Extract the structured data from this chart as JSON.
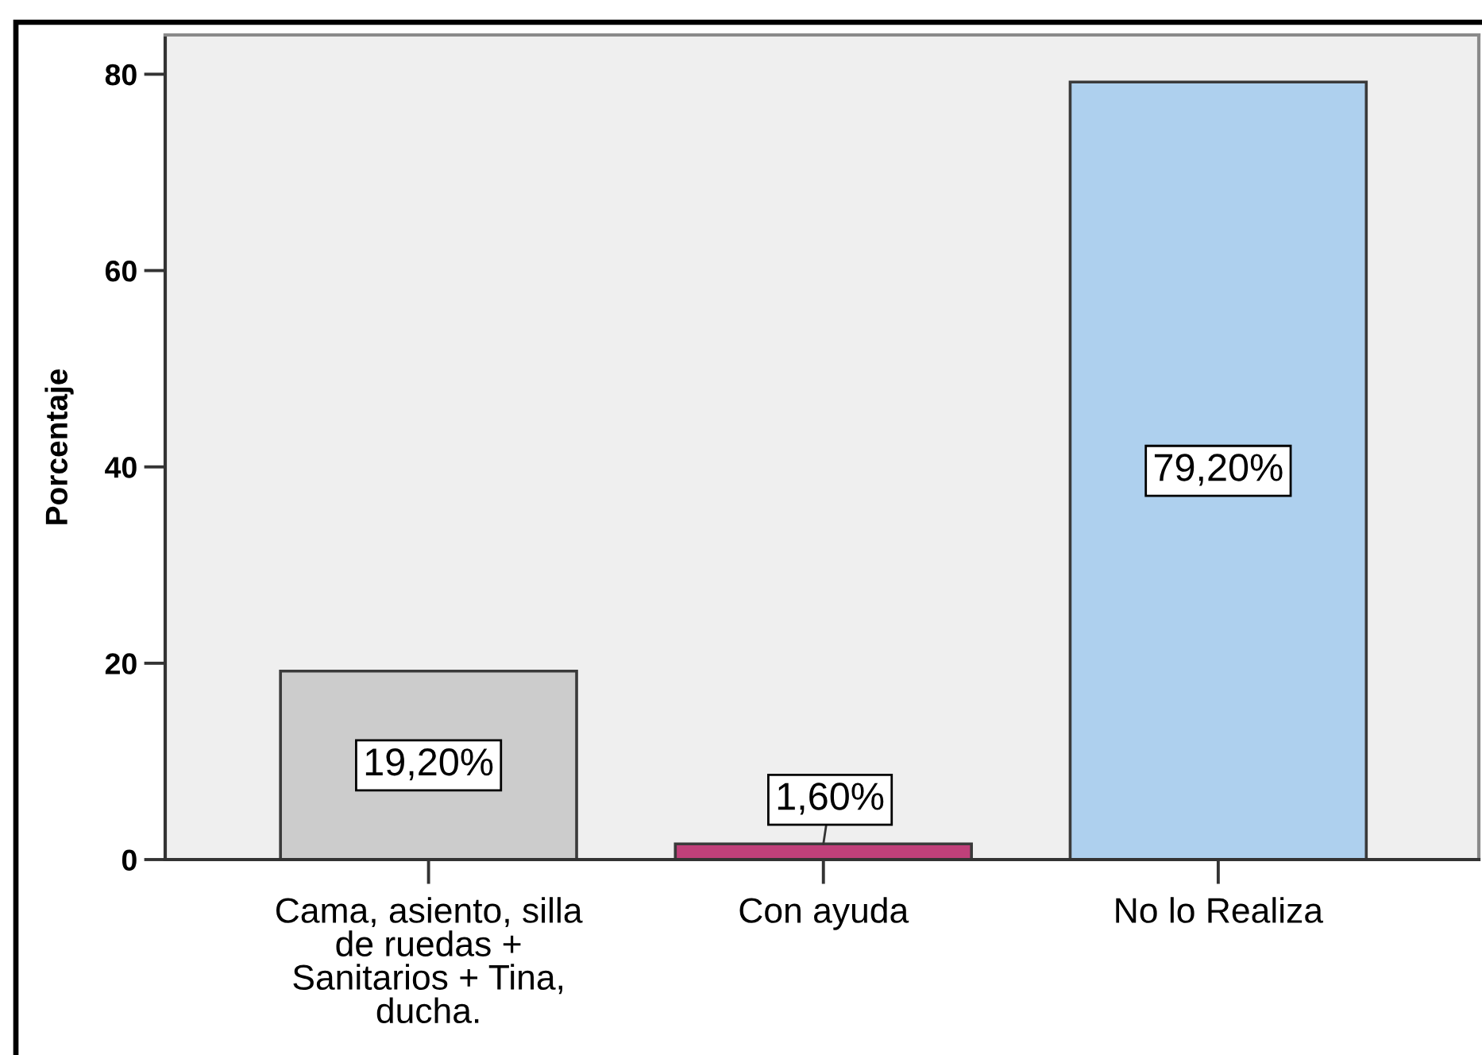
{
  "chart_data": {
    "type": "bar",
    "ylabel": "Porcentaje",
    "categories": [
      "Cama, asiento, silla de ruedas + Sanitarios + Tina, ducha.",
      "Con ayuda",
      "No lo Realiza"
    ],
    "values": [
      19.2,
      1.6,
      79.2
    ],
    "colors": [
      "#cccccc",
      "#c0407a",
      "#aed0ee"
    ],
    "value_labels": [
      "19,20%",
      "1,60%",
      "79,20%"
    ],
    "ylim": [
      0,
      84
    ],
    "yticks": [
      0,
      20,
      40,
      60,
      80
    ]
  }
}
